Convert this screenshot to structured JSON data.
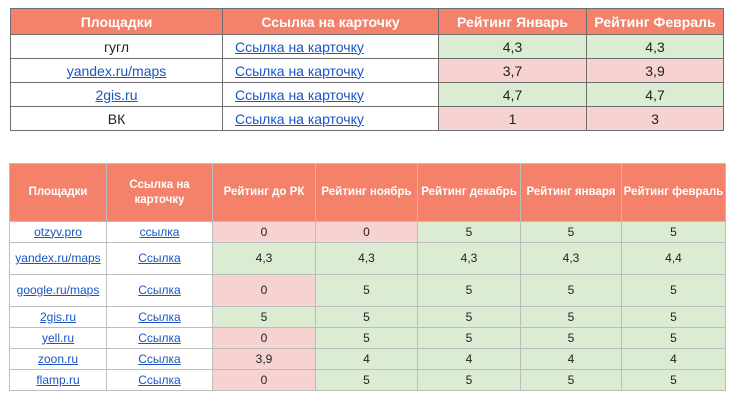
{
  "table1": {
    "headers": [
      "Площадки",
      "Ссылка на карточку",
      "Рейтинг Январь",
      "Рейтинг Февраль"
    ],
    "rows": [
      {
        "site": "гугл",
        "site_is_link": false,
        "link": "Ссылка на карточку",
        "jan": "4,3",
        "feb": "4,3",
        "jan_color": "green",
        "feb_color": "green"
      },
      {
        "site": "yandex.ru/maps",
        "site_is_link": true,
        "link": "Ссылка на карточку",
        "jan": "3,7",
        "feb": "3,9",
        "jan_color": "pink",
        "feb_color": "pink"
      },
      {
        "site": "2gis.ru",
        "site_is_link": true,
        "link": "Ссылка на карточку",
        "jan": "4,7",
        "feb": "4,7",
        "jan_color": "green",
        "feb_color": "green"
      },
      {
        "site": "ВК",
        "site_is_link": false,
        "link": "Ссылка на карточку",
        "jan": "1",
        "feb": "3",
        "jan_color": "pink",
        "feb_color": "pink"
      }
    ]
  },
  "table2": {
    "headers": [
      "Площадки",
      "Ссылка на карточку",
      "Рейтинг до РК",
      "Рейтинг ноябрь",
      "Рейтинг декабрь",
      "Рейтинг января",
      "Рейтинг февраль"
    ],
    "rows": [
      {
        "site": "otzyv.pro",
        "link": "ссылка",
        "values": [
          "0",
          "0",
          "5",
          "5",
          "5"
        ],
        "colors": [
          "pink",
          "pink",
          "green",
          "green",
          "green"
        ]
      },
      {
        "site": "yandex.ru/maps",
        "link": "Ссылка",
        "values": [
          "4,3",
          "4,3",
          "4,3",
          "4,3",
          "4,4"
        ],
        "colors": [
          "green",
          "green",
          "green",
          "green",
          "green"
        ]
      },
      {
        "site": "google.ru/maps",
        "link": "Ссылка",
        "values": [
          "0",
          "5",
          "5",
          "5",
          "5"
        ],
        "colors": [
          "pink",
          "green",
          "green",
          "green",
          "green"
        ]
      },
      {
        "site": "2gis.ru",
        "link": "Ссылка",
        "values": [
          "5",
          "5",
          "5",
          "5",
          "5"
        ],
        "colors": [
          "green",
          "green",
          "green",
          "green",
          "green"
        ]
      },
      {
        "site": "yell.ru",
        "link": "Ссылка",
        "values": [
          "0",
          "5",
          "5",
          "5",
          "5"
        ],
        "colors": [
          "pink",
          "green",
          "green",
          "green",
          "green"
        ]
      },
      {
        "site": "zoon.ru",
        "link": "Ссылка",
        "values": [
          "3,9",
          "4",
          "4",
          "4",
          "4"
        ],
        "colors": [
          "pink",
          "green",
          "green",
          "green",
          "green"
        ]
      },
      {
        "site": "flamp.ru",
        "link": "Ссылка",
        "values": [
          "0",
          "5",
          "5",
          "5",
          "5"
        ],
        "colors": [
          "pink",
          "green",
          "green",
          "green",
          "green"
        ]
      }
    ]
  },
  "colors": {
    "header_bg": "#f4816a",
    "pink": "#f6d3d0",
    "green": "#dcecd3",
    "link": "#1a55c4"
  }
}
